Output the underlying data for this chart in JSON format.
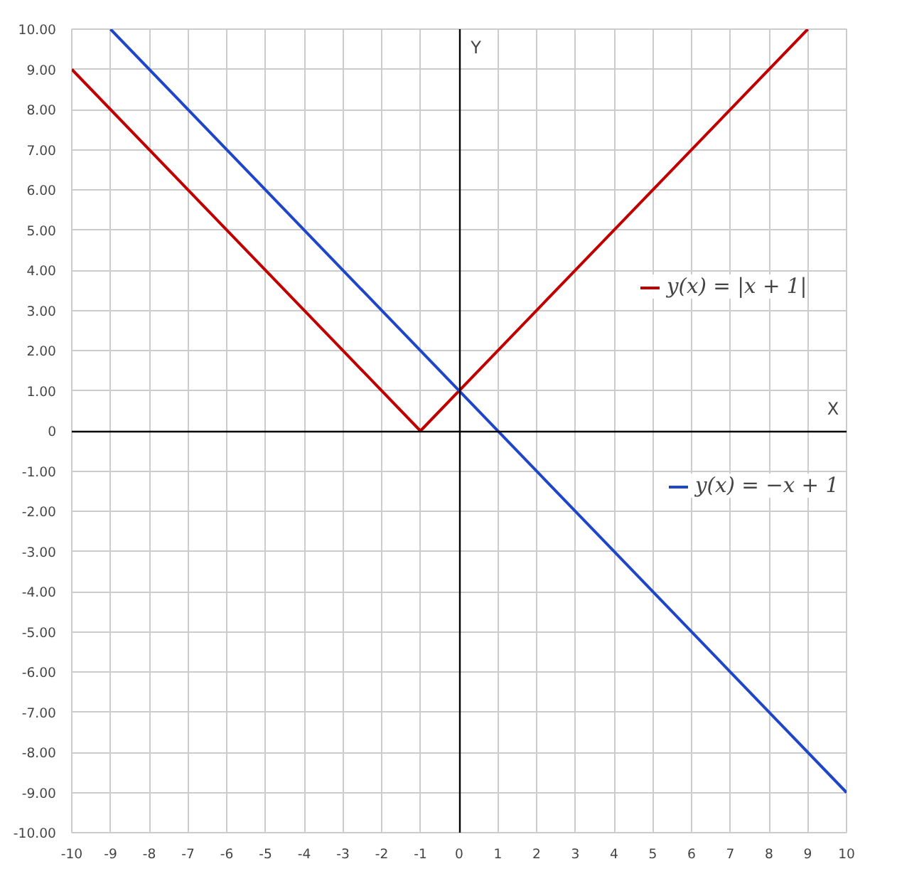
{
  "chart_data": {
    "type": "line",
    "xlabel": "X",
    "ylabel": "Y",
    "xlim": [
      -10,
      10
    ],
    "ylim": [
      -10,
      10
    ],
    "xticks": [
      -10,
      -9,
      -8,
      -7,
      -6,
      -5,
      -4,
      -3,
      -2,
      -1,
      0,
      1,
      2,
      3,
      4,
      5,
      6,
      7,
      8,
      9,
      10
    ],
    "yticks": [
      {
        "value": -10,
        "label": "-10.00"
      },
      {
        "value": -9,
        "label": "-9.00"
      },
      {
        "value": -8,
        "label": "-8.00"
      },
      {
        "value": -7,
        "label": "-7.00"
      },
      {
        "value": -6,
        "label": "-6.00"
      },
      {
        "value": -5,
        "label": "-5.00"
      },
      {
        "value": -4,
        "label": "-4.00"
      },
      {
        "value": -3,
        "label": "-3.00"
      },
      {
        "value": -2,
        "label": "-2.00"
      },
      {
        "value": -1,
        "label": "-1.00"
      },
      0,
      {
        "value": 1,
        "label": "1.00"
      },
      {
        "value": 2,
        "label": "2.00"
      },
      {
        "value": 3,
        "label": "3.00"
      },
      {
        "value": 4,
        "label": "4.00"
      },
      {
        "value": 5,
        "label": "5.00"
      },
      {
        "value": 6,
        "label": "6.00"
      },
      {
        "value": 7,
        "label": "7.00"
      },
      {
        "value": 8,
        "label": "8.00"
      },
      {
        "value": 9,
        "label": "9.00"
      },
      {
        "value": 10,
        "label": "10.00"
      }
    ],
    "grid": true,
    "legend": "right",
    "marker": "none",
    "line_style": "solid",
    "series": [
      {
        "name": "y(x) = |x + 1|",
        "color": "#c00000",
        "x": [
          -10,
          -1,
          9
        ],
        "values": [
          9,
          0,
          10
        ]
      },
      {
        "name": "y(x) = −x + 1",
        "color": "#1f45c8",
        "x": [
          -9,
          10
        ],
        "values": [
          10,
          -9
        ]
      }
    ]
  }
}
